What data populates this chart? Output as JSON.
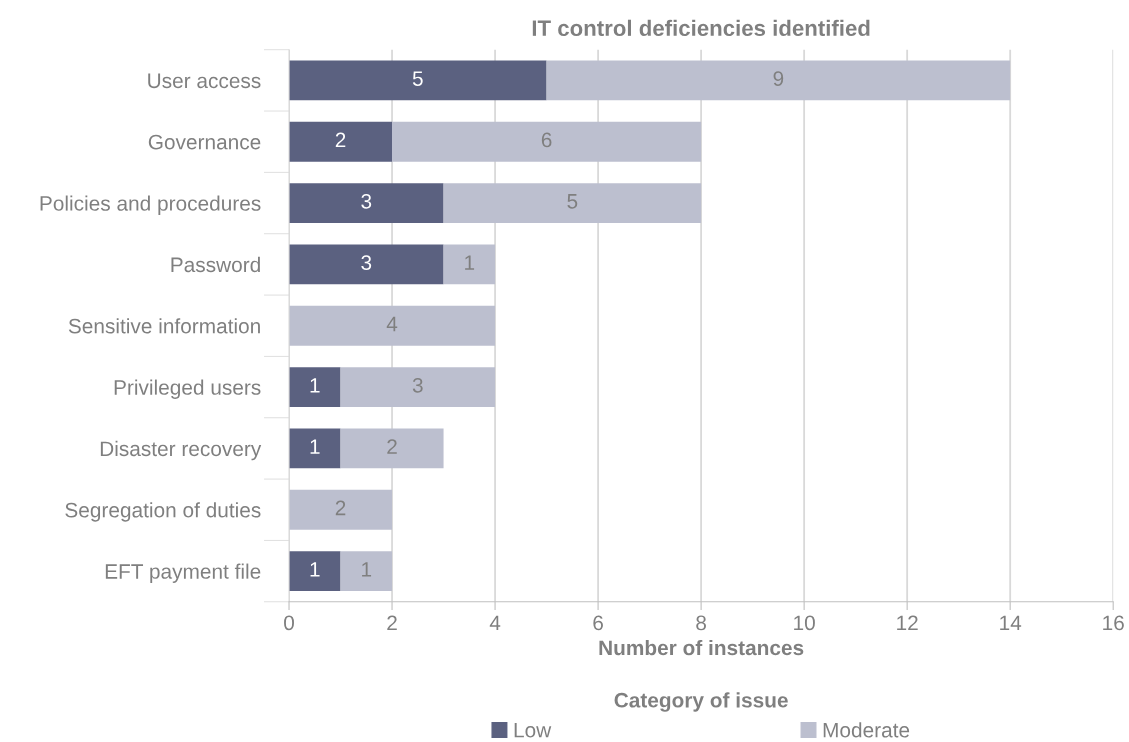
{
  "chart_data": {
    "type": "bar",
    "orientation": "horizontal",
    "stacked": true,
    "title": "IT control deficiencies identified",
    "xlabel": "Number of instances",
    "legend_title": "Category of issue",
    "categories": [
      "User access",
      "Governance",
      "Policies and procedures",
      "Password",
      "Sensitive information",
      "Privileged users",
      "Disaster recovery",
      "Segregation of duties",
      "EFT payment file"
    ],
    "series": [
      {
        "name": "Low",
        "color": "#5b6180",
        "values": [
          5,
          2,
          3,
          3,
          null,
          1,
          1,
          null,
          1
        ]
      },
      {
        "name": "Moderate",
        "color": "#bcbfcf",
        "values": [
          9,
          6,
          5,
          1,
          4,
          3,
          2,
          2,
          1
        ]
      }
    ],
    "xlim": [
      0,
      16
    ],
    "xticks": [
      0,
      2,
      4,
      6,
      8,
      10,
      12,
      14,
      16
    ],
    "grid": "x",
    "legend": "bottom",
    "data_labels": true
  }
}
